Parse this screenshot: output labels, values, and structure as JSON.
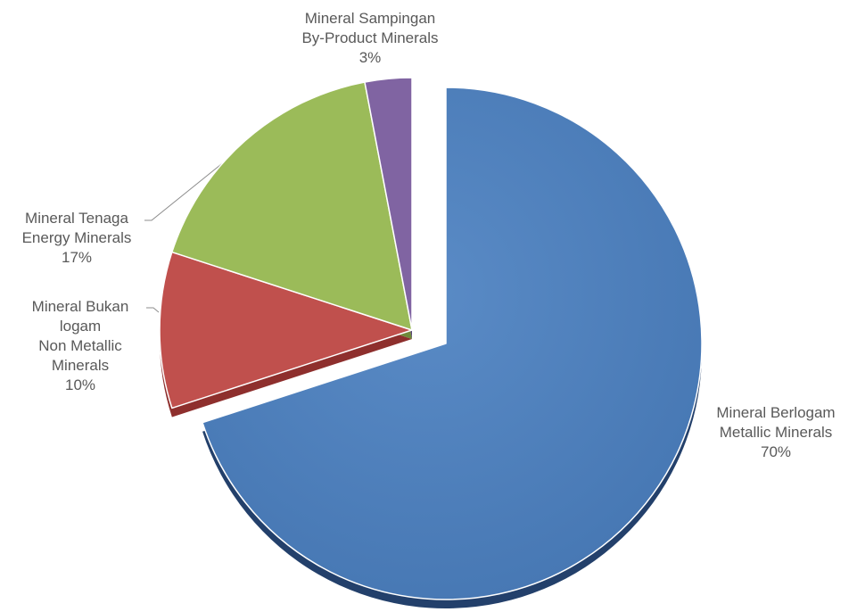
{
  "chart_data": {
    "type": "pie",
    "title": "",
    "style": "3d-exploded",
    "slices": [
      {
        "key": "metallic",
        "label_ms": "Mineral Berlogam",
        "label_en": "Metallic Minerals",
        "value": 70,
        "value_label": "70%",
        "color": "#4f81bd",
        "side_color": "#23406b"
      },
      {
        "key": "nonmetallic",
        "label_ms_1": "Mineral Bukan",
        "label_ms_2": "logam",
        "label_en_1": "Non Metallic",
        "label_en_2": "Minerals",
        "value": 10,
        "value_label": "10%",
        "color": "#c0504d",
        "side_color": "#8e2f2d"
      },
      {
        "key": "energy",
        "label_ms": "Mineral Tenaga",
        "label_en": "Energy Minerals",
        "value": 17,
        "value_label": "17%",
        "color": "#9bbb59",
        "side_color": "#6f8a3a"
      },
      {
        "key": "byproduct",
        "label_ms": "Mineral Sampingan",
        "label_en": "By-Product Minerals",
        "value": 3,
        "value_label": "3%",
        "color": "#8064a2",
        "side_color": "#5a4577"
      }
    ]
  }
}
